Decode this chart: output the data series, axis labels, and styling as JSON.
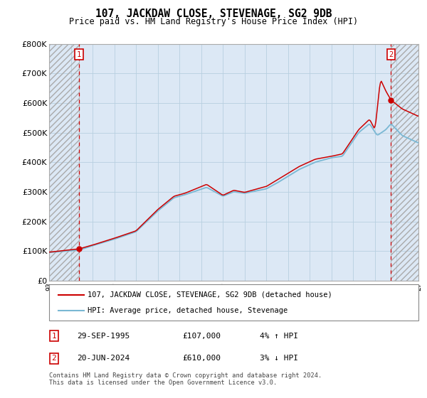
{
  "title": "107, JACKDAW CLOSE, STEVENAGE, SG2 9DB",
  "subtitle": "Price paid vs. HM Land Registry's House Price Index (HPI)",
  "legend_line1": "107, JACKDAW CLOSE, STEVENAGE, SG2 9DB (detached house)",
  "legend_line2": "HPI: Average price, detached house, Stevenage",
  "annotation1_date": "29-SEP-1995",
  "annotation1_price": "£107,000",
  "annotation1_hpi": "4% ↑ HPI",
  "annotation2_date": "20-JUN-2024",
  "annotation2_price": "£610,000",
  "annotation2_hpi": "3% ↓ HPI",
  "footer": "Contains HM Land Registry data © Crown copyright and database right 2024.\nThis data is licensed under the Open Government Licence v3.0.",
  "sale1_year": 1995.75,
  "sale1_value": 107000,
  "sale2_year": 2024.47,
  "sale2_value": 610000,
  "xmin": 1993.0,
  "xmax": 2027.0,
  "ymin": 0,
  "ymax": 800000,
  "yticks": [
    0,
    100000,
    200000,
    300000,
    400000,
    500000,
    600000,
    700000,
    800000
  ],
  "plot_bg": "#dce8f5",
  "hpi_line_color": "#7ab8d4",
  "price_line_color": "#cc0000",
  "dashed_line_color": "#cc0000",
  "marker_color": "#cc0000",
  "box_color": "#cc0000",
  "grid_color": "#b8cfe0"
}
